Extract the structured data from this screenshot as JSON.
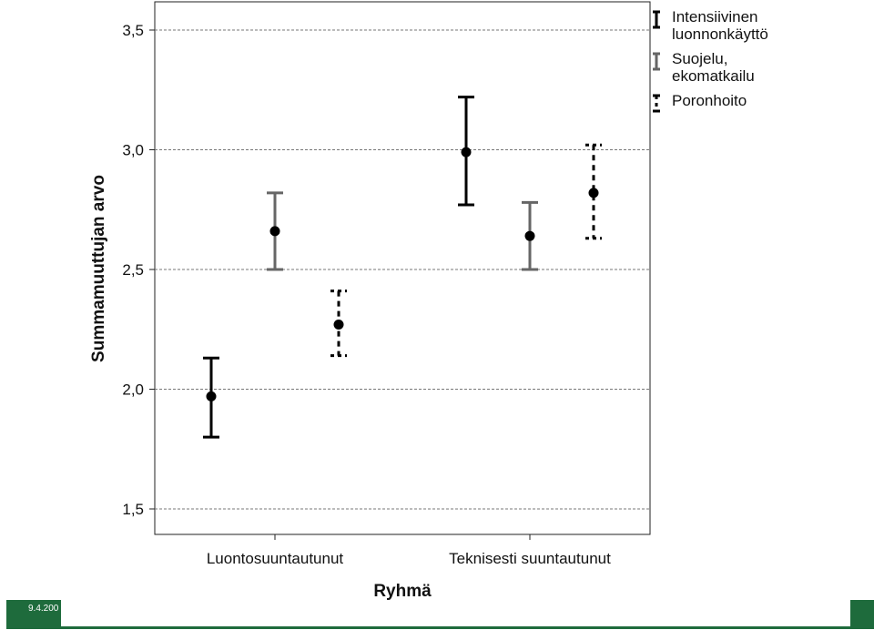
{
  "chart_data": {
    "type": "errorbar",
    "title": "",
    "xlabel": "Ryhmä",
    "ylabel": "Summamuuttujan arvo",
    "ylim": [
      1.5,
      3.6
    ],
    "yticks": [
      1.5,
      2.0,
      2.5,
      3.0,
      3.5
    ],
    "ytick_labels": [
      "1,5",
      "2,0",
      "2,5",
      "3,0",
      "3,5"
    ],
    "grid": "horizontal dashed",
    "categories": [
      "Luontosuuntautunut",
      "Teknisesti suuntautunut"
    ],
    "legend_position": "top-right",
    "series": [
      {
        "name": "Intensiivinen luonnonkäyttö",
        "legend_lines": [
          "Intensiivinen",
          "luonnonkäyttö"
        ],
        "color": "#000000",
        "style": "solid",
        "mean": [
          1.97,
          2.99
        ],
        "lower": [
          1.8,
          2.77
        ],
        "upper": [
          2.13,
          3.22
        ]
      },
      {
        "name": "Suojelu, ekomatkailu",
        "legend_lines": [
          "Suojelu,",
          "ekomatkailu"
        ],
        "color": "#666666",
        "style": "solid",
        "mean": [
          2.66,
          2.64
        ],
        "lower": [
          2.5,
          2.5
        ],
        "upper": [
          2.82,
          2.78
        ]
      },
      {
        "name": "Poronhoito",
        "legend_lines": [
          "Poronhoito"
        ],
        "color": "#000000",
        "style": "dashed",
        "mean": [
          2.27,
          2.82
        ],
        "lower": [
          2.14,
          2.63
        ],
        "upper": [
          2.41,
          3.02
        ]
      }
    ]
  },
  "footer": {
    "date": "9.4.200",
    "left_color": "#1e6b3c"
  }
}
